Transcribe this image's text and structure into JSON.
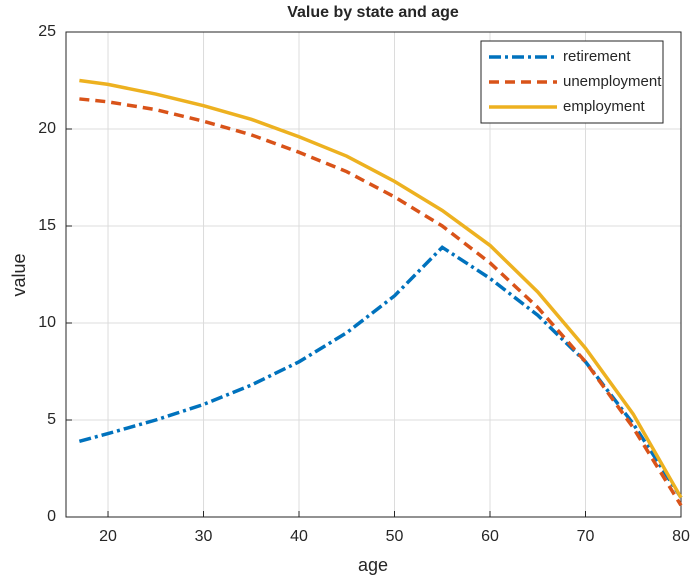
{
  "chart_data": {
    "type": "line",
    "title": "Value by state and age",
    "xlabel": "age",
    "ylabel": "value",
    "x": [
      17,
      20,
      25,
      30,
      35,
      40,
      45,
      50,
      55,
      60,
      65,
      70,
      75,
      80
    ],
    "series": [
      {
        "name": "retirement",
        "color": "#0072bd",
        "dash": "dashdot",
        "values": [
          3.9,
          4.3,
          5.0,
          5.8,
          6.8,
          8.0,
          9.5,
          11.4,
          13.9,
          12.3,
          10.4,
          8.0,
          4.8,
          1.0
        ]
      },
      {
        "name": "unemployment",
        "color": "#d95319",
        "dash": "dashed",
        "values": [
          21.55,
          21.4,
          21.0,
          20.4,
          19.7,
          18.8,
          17.8,
          16.5,
          15.0,
          13.1,
          10.8,
          8.0,
          4.6,
          0.6
        ]
      },
      {
        "name": "employment",
        "color": "#edb120",
        "dash": "solid",
        "values": [
          22.5,
          22.3,
          21.8,
          21.2,
          20.5,
          19.6,
          18.6,
          17.3,
          15.8,
          14.0,
          11.6,
          8.7,
          5.3,
          1.0
        ]
      }
    ],
    "xlim": [
      15.6,
      80
    ],
    "xticks": [
      20,
      30,
      40,
      50,
      60,
      70,
      80
    ],
    "ylim": [
      0,
      25
    ],
    "yticks": [
      0,
      5,
      10,
      15,
      20,
      25
    ],
    "grid": true,
    "legend": "northeast"
  }
}
